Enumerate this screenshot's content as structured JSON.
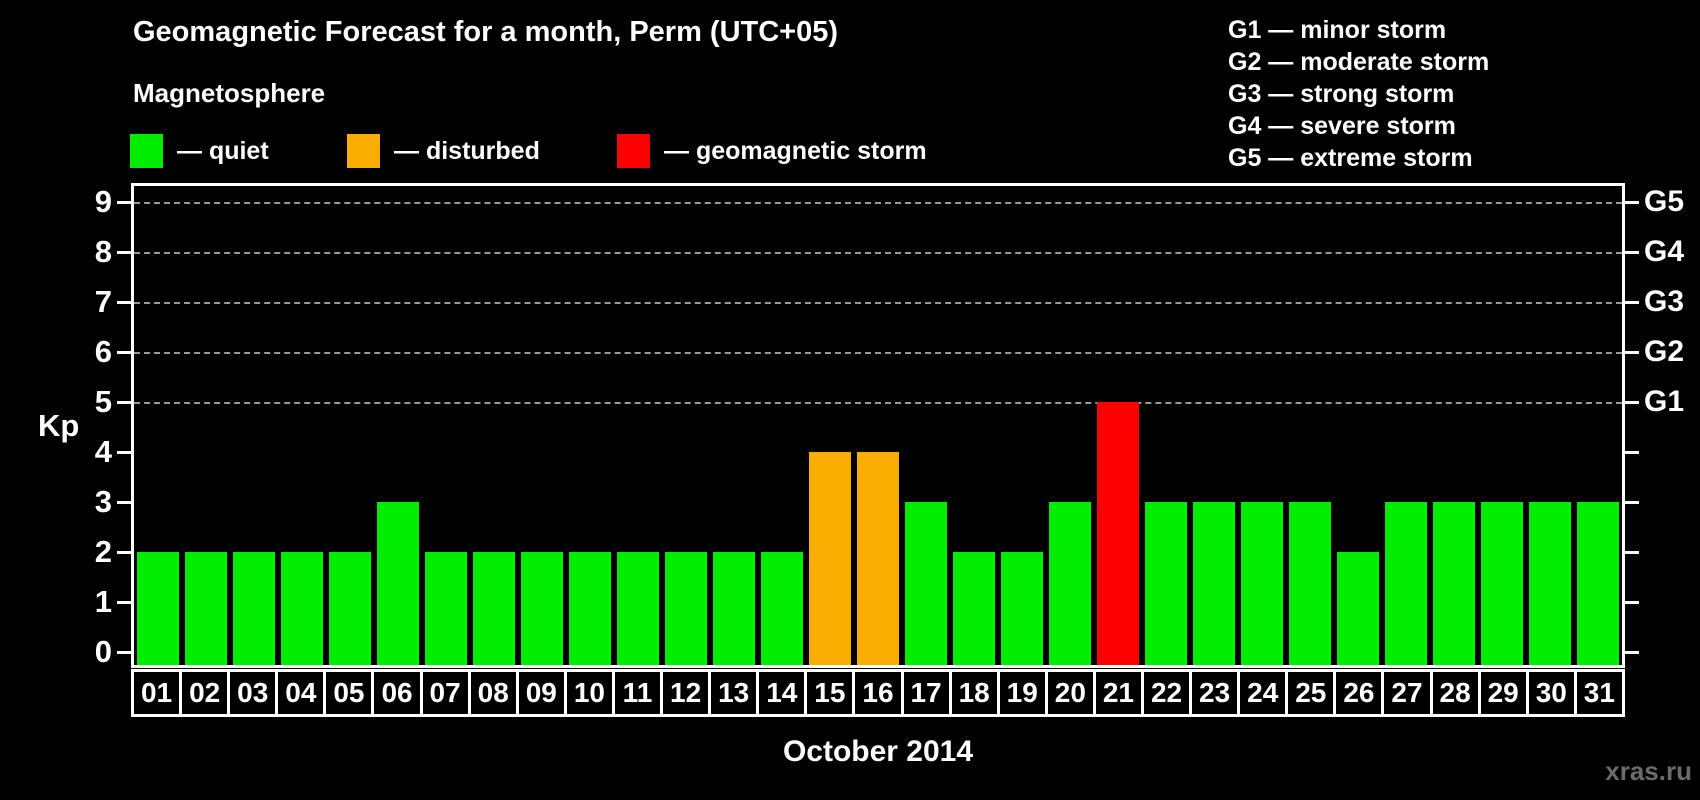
{
  "header": {
    "title": "Geomagnetic Forecast for a month, Perm (UTC+05)",
    "subtitle": "Magnetosphere"
  },
  "legend": {
    "items": [
      {
        "key": "quiet",
        "label": "— quiet",
        "color": "#00ec00"
      },
      {
        "key": "disturbed",
        "label": "— disturbed",
        "color": "#f9ad00"
      },
      {
        "key": "storm",
        "label": "— geomagnetic storm",
        "color": "#fc0000"
      }
    ]
  },
  "g_scale_legend": {
    "items": [
      "G1 — minor storm",
      "G2 — moderate storm",
      "G3 — strong storm",
      "G4 — severe storm",
      "G5 — extreme storm"
    ]
  },
  "chart_data": {
    "type": "bar",
    "title": "Geomagnetic Forecast for a month, Perm (UTC+05)",
    "xlabel": "October 2014",
    "ylabel": "Kp",
    "ylim": [
      0,
      9.6
    ],
    "grid": "horizontal dashed lines at Kp 5-9 only",
    "legend_position": "top",
    "categories": [
      "01",
      "02",
      "03",
      "04",
      "05",
      "06",
      "07",
      "08",
      "09",
      "10",
      "11",
      "12",
      "13",
      "14",
      "15",
      "16",
      "17",
      "18",
      "19",
      "20",
      "21",
      "22",
      "23",
      "24",
      "25",
      "26",
      "27",
      "28",
      "29",
      "30",
      "31"
    ],
    "values": [
      2,
      2,
      2,
      2,
      2,
      3,
      2,
      2,
      2,
      2,
      2,
      2,
      2,
      2,
      4,
      4,
      3,
      2,
      2,
      3,
      5,
      3,
      3,
      3,
      3,
      2,
      3,
      3,
      3,
      3,
      3
    ],
    "statuses": [
      "quiet",
      "quiet",
      "quiet",
      "quiet",
      "quiet",
      "quiet",
      "quiet",
      "quiet",
      "quiet",
      "quiet",
      "quiet",
      "quiet",
      "quiet",
      "quiet",
      "disturbed",
      "disturbed",
      "quiet",
      "quiet",
      "quiet",
      "quiet",
      "storm",
      "quiet",
      "quiet",
      "quiet",
      "quiet",
      "quiet",
      "quiet",
      "quiet",
      "quiet",
      "quiet",
      "quiet"
    ],
    "y_ticks": [
      0,
      1,
      2,
      3,
      4,
      5,
      6,
      7,
      8,
      9
    ],
    "right_axis_labels": [
      {
        "kp": 5,
        "label": "G1"
      },
      {
        "kp": 6,
        "label": "G2"
      },
      {
        "kp": 7,
        "label": "G3"
      },
      {
        "kp": 8,
        "label": "G4"
      },
      {
        "kp": 9,
        "label": "G5"
      }
    ]
  },
  "footer": {
    "watermark": "xras.ru",
    "watermark_color": "#6b6b6b"
  }
}
